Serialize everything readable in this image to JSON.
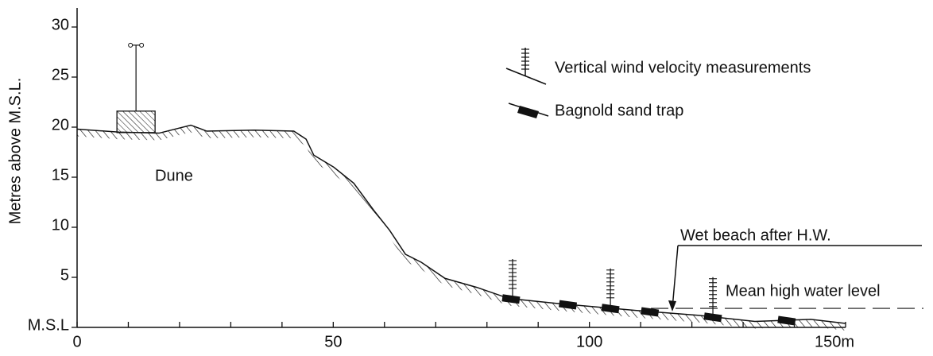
{
  "chart_data": {
    "type": "profile",
    "ylabel": "Metres above M.S.L.",
    "x": [
      0,
      8.2,
      16,
      22.2,
      25.3,
      34.6,
      42.3,
      44.7,
      46.2,
      50.1,
      54,
      57.9,
      61,
      64.1,
      67.2,
      71.8,
      78,
      84.2,
      93.5,
      109,
      121.4,
      132.3,
      143.2,
      150
    ],
    "values": [
      19.8,
      19.5,
      19.4,
      20.2,
      19.6,
      19.7,
      19.6,
      18.8,
      17.2,
      16,
      14.4,
      11.7,
      9.7,
      7.3,
      6.5,
      4.9,
      4,
      2.9,
      2.4,
      1.7,
      1.2,
      0.6,
      0.8,
      0.4
    ],
    "xlim": [
      0,
      150
    ],
    "ylim": [
      0,
      30
    ],
    "xticks": [
      0,
      50,
      100,
      {
        "value": 150,
        "label": "150m"
      }
    ],
    "xminor_ticks": [
      10,
      20,
      30,
      40,
      60,
      70,
      80,
      90,
      110,
      120,
      130,
      140
    ],
    "yticks": [
      {
        "value": 0,
        "label": "M.S.L"
      },
      5,
      10,
      15,
      20,
      25,
      30
    ],
    "mean_high_water": 1.9,
    "wind_masts_x": [
      85,
      104.1,
      124.1
    ],
    "sand_traps_x": [
      84.7,
      95.8,
      104.1,
      111.8,
      124.1,
      138.5
    ],
    "dune_mast_x": 11.5,
    "annotations": {
      "dune": "Dune",
      "wet_beach": "Wet beach after H.W.",
      "mhw": "Mean high water level"
    },
    "legend": {
      "wind": "Vertical wind velocity measurements",
      "trap": "Bagnold sand trap"
    }
  }
}
